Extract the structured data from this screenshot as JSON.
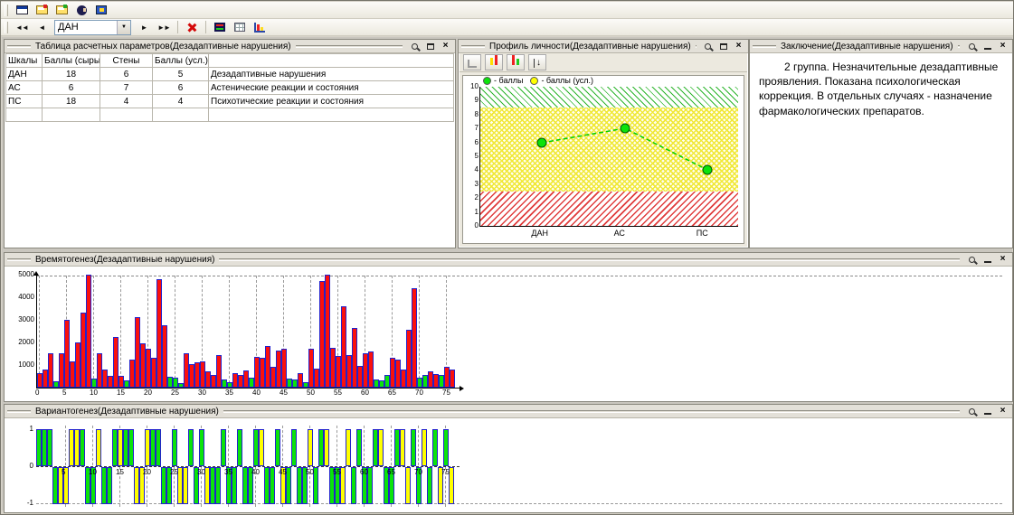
{
  "toolbars": {
    "main_icons": [
      "report-window-icon",
      "card-file-results-icon",
      "card-file-open-icon",
      "patient-head-icon",
      "device-icon"
    ],
    "nav": {
      "first": "◄◄",
      "prev": "◄",
      "next": "►",
      "last": "►►",
      "combo_value": "ДАН",
      "delete_icon": "red-cross-icon",
      "extra_icons": [
        "profile-flag-icon",
        "table-grid-icon",
        "histogram-icon"
      ]
    }
  },
  "panels": {
    "table": {
      "title": "Таблица расчетных параметров(Дезадаптивные нарушения)",
      "columns": [
        "Шкалы",
        "Баллы (сырые)",
        "Стены",
        "Баллы (усл.)"
      ],
      "rows": [
        [
          "ДАН",
          "18",
          "6",
          "5",
          "Дезадаптивные нарушения"
        ],
        [
          "АС",
          "6",
          "7",
          "6",
          "Астенические реакции и состояния"
        ],
        [
          "ПС",
          "18",
          "4",
          "4",
          "Психотические реакции и состояния"
        ]
      ]
    },
    "profile": {
      "title": "Профиль личности(Дезадаптивные нарушения)",
      "toolbar_icons": [
        "axis-chart-icon",
        "bars-yellow-red-icon",
        "bars-red-green-icon",
        "sort-arrows-icon"
      ]
    },
    "conclusion": {
      "title": "Заключение(Дезадаптивные нарушения)",
      "text": "2 группа. Незначительные дезадаптивные проявления. Показана психологическая коррекция. В отдельных случаях - назначение фармакологических препаратов."
    },
    "time": {
      "title": "Времятогенез(Дезадаптивные нарушения)"
    },
    "variant": {
      "title": "Вариантогенез(Дезадаптивные нарушения)"
    }
  },
  "chart_data": [
    {
      "type": "line",
      "title": "Профиль личности(Дезадаптивные нарушения)",
      "categories": [
        "ДАН",
        "АС",
        "ПС"
      ],
      "values": [
        6,
        7,
        4
      ],
      "ylim": [
        0,
        10
      ],
      "yticks": [
        0,
        1,
        2,
        3,
        4,
        5,
        6,
        7,
        8,
        9,
        10
      ],
      "zones": [
        {
          "name": "low",
          "from": 0,
          "to": 2.5,
          "color": "#e03c3c"
        },
        {
          "name": "middle",
          "from": 2.5,
          "to": 8.5,
          "color": "#f0e838"
        },
        {
          "name": "high",
          "from": 8.5,
          "to": 10,
          "color": "#2db52d"
        }
      ],
      "legend": [
        {
          "label": "- баллы",
          "color": "#0be30b"
        },
        {
          "label": "- баллы (усл.)",
          "color": "#ffff00"
        }
      ],
      "line_color": "#00cc00",
      "point_color": "#0be30b",
      "grid": false,
      "legend_position": "top-left"
    },
    {
      "type": "bar",
      "title": "Времятогенез(Дезадаптивные нарушения)",
      "xlabel": "",
      "ylabel": "",
      "ylim": [
        0,
        5000
      ],
      "yticks": [
        1000,
        2000,
        3000,
        4000,
        5000
      ],
      "xticks": [
        0,
        5,
        10,
        15,
        20,
        25,
        30,
        35,
        40,
        45,
        50,
        55,
        60,
        65,
        70,
        75
      ],
      "values": [
        650,
        800,
        1500,
        280,
        1500,
        3000,
        1150,
        2000,
        3300,
        5000,
        380,
        1500,
        800,
        500,
        2250,
        520,
        330,
        1250,
        3100,
        1950,
        1700,
        1300,
        4800,
        2750,
        480,
        420,
        200,
        1500,
        1050,
        1100,
        1150,
        700,
        550,
        1450,
        350,
        250,
        650,
        560,
        760,
        420,
        1350,
        1300,
        1850,
        900,
        1650,
        1700,
        400,
        350,
        650,
        250,
        1700,
        850,
        4700,
        5000,
        1750,
        1400,
        3600,
        1450,
        2650,
        950,
        1500,
        1600,
        350,
        300,
        550,
        1300,
        1250,
        800,
        2550,
        4400,
        450,
        550,
        700,
        600,
        550,
        900,
        800
      ],
      "colors": [
        "r",
        "r",
        "r",
        "g",
        "r",
        "r",
        "r",
        "r",
        "r",
        "r",
        "g",
        "r",
        "r",
        "r",
        "r",
        "r",
        "g",
        "r",
        "r",
        "r",
        "r",
        "r",
        "r",
        "r",
        "g",
        "g",
        "g",
        "r",
        "r",
        "r",
        "r",
        "r",
        "r",
        "r",
        "g",
        "g",
        "r",
        "r",
        "r",
        "g",
        "r",
        "r",
        "r",
        "r",
        "r",
        "r",
        "g",
        "g",
        "r",
        "g",
        "r",
        "r",
        "r",
        "r",
        "r",
        "r",
        "r",
        "r",
        "r",
        "r",
        "r",
        "r",
        "g",
        "g",
        "g",
        "r",
        "r",
        "r",
        "r",
        "r",
        "g",
        "g",
        "r",
        "r",
        "g",
        "r",
        "r"
      ],
      "grid": "dashed-vertical"
    },
    {
      "type": "bar",
      "title": "Вариантогенез(Дезадаптивные нарушения)",
      "ylim": [
        -1,
        1
      ],
      "yticks": [
        1,
        0,
        -1
      ],
      "xticks": [
        5,
        10,
        15,
        20,
        25,
        30,
        35,
        40,
        45,
        50,
        55,
        60,
        65,
        70,
        75
      ],
      "values": [
        1,
        1,
        1,
        -1,
        -1,
        -1,
        1,
        1,
        1,
        -1,
        -1,
        1,
        -1,
        -1,
        1,
        1,
        1,
        1,
        -1,
        -1,
        1,
        1,
        1,
        -1,
        -1,
        1,
        -1,
        -1,
        1,
        -1,
        1,
        -1,
        -1,
        -1,
        1,
        -1,
        -1,
        1,
        -1,
        -1,
        1,
        1,
        -1,
        -1,
        1,
        -1,
        -1,
        1,
        -1,
        -1,
        1,
        -1,
        1,
        1,
        -1,
        -1,
        -1,
        1,
        -1,
        1,
        -1,
        -1,
        1,
        1,
        -1,
        -1,
        1,
        1,
        -1,
        1,
        -1,
        1,
        -1,
        1,
        -1,
        1,
        -1
      ],
      "colors": [
        "g",
        "g",
        "g",
        "g",
        "y",
        "y",
        "y",
        "y",
        "g",
        "g",
        "g",
        "y",
        "g",
        "g",
        "g",
        "y",
        "g",
        "g",
        "y",
        "y",
        "y",
        "g",
        "g",
        "g",
        "g",
        "g",
        "y",
        "y",
        "g",
        "g",
        "g",
        "y",
        "g",
        "g",
        "g",
        "g",
        "g",
        "g",
        "g",
        "g",
        "g",
        "y",
        "g",
        "g",
        "g",
        "y",
        "g",
        "g",
        "g",
        "g",
        "y",
        "g",
        "g",
        "y",
        "g",
        "g",
        "y",
        "y",
        "g",
        "g",
        "g",
        "g",
        "g",
        "y",
        "g",
        "g",
        "g",
        "y",
        "y",
        "g",
        "g",
        "y",
        "g",
        "g",
        "y",
        "g",
        "y"
      ],
      "grid": "dashed-vertical"
    }
  ]
}
